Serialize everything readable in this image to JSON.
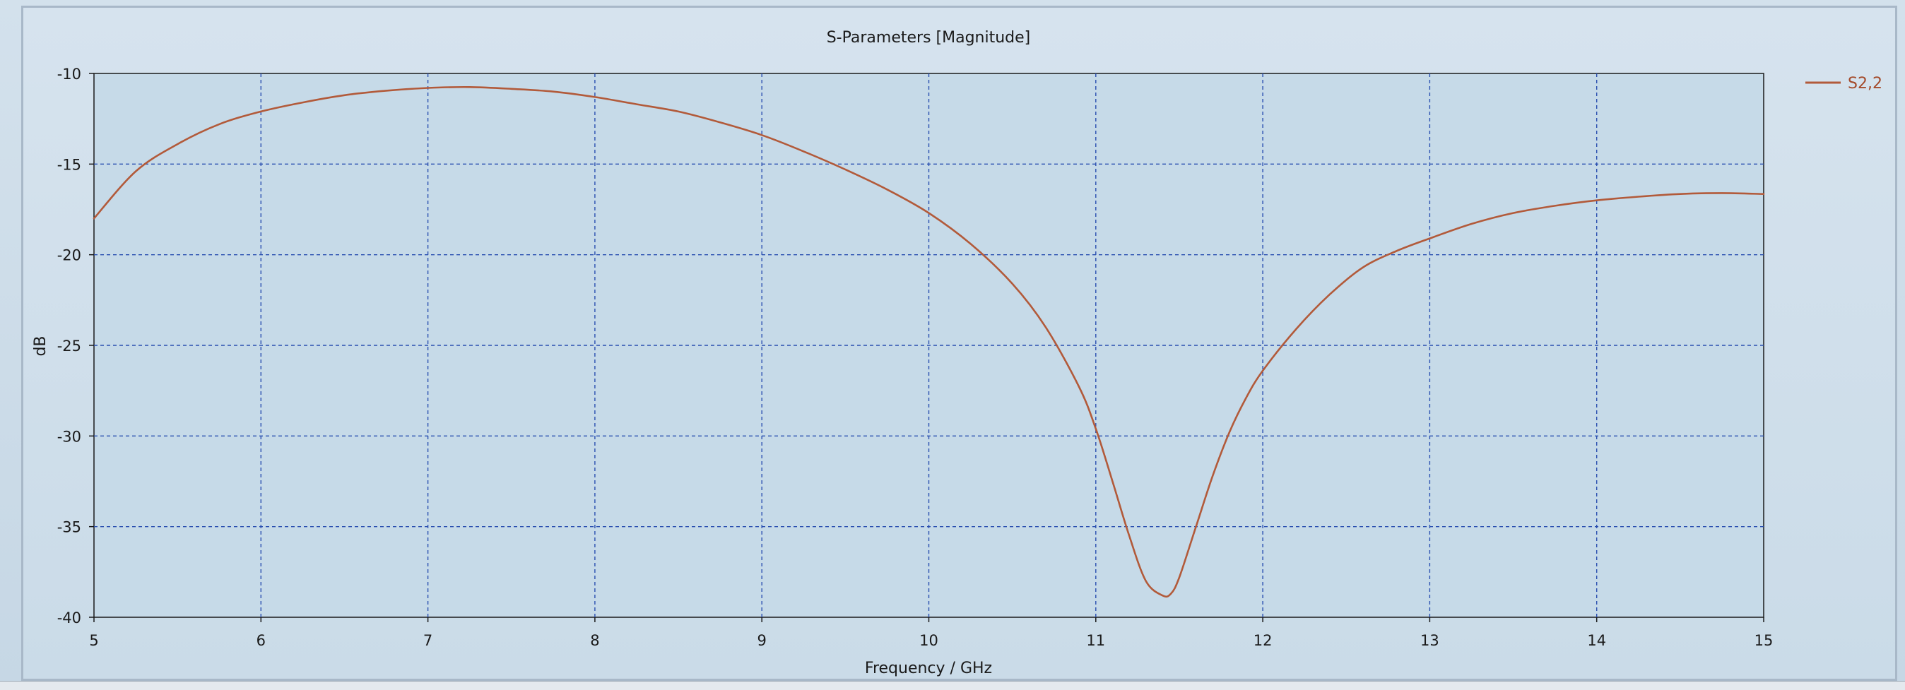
{
  "chart_data": {
    "type": "line",
    "title": "S-Parameters [Magnitude]",
    "xlabel": "Frequency / GHz",
    "ylabel": "dB",
    "xlim": [
      5,
      15
    ],
    "ylim": [
      -40,
      -10
    ],
    "xticks": [
      5,
      6,
      7,
      8,
      9,
      10,
      11,
      12,
      13,
      14,
      15
    ],
    "yticks": [
      -10,
      -15,
      -20,
      -25,
      -30,
      -35,
      -40
    ],
    "grid": true,
    "legend_position": "top-right",
    "series": [
      {
        "name": "S2,2",
        "color": "#b25a3a",
        "x": [
          5.0,
          5.25,
          5.5,
          5.75,
          6.0,
          6.25,
          6.5,
          6.75,
          7.0,
          7.25,
          7.5,
          7.75,
          8.0,
          8.25,
          8.5,
          8.75,
          9.0,
          9.25,
          9.5,
          9.75,
          10.0,
          10.25,
          10.5,
          10.7,
          10.9,
          11.0,
          11.1,
          11.2,
          11.3,
          11.4,
          11.45,
          11.5,
          11.6,
          11.7,
          11.8,
          11.9,
          12.0,
          12.2,
          12.4,
          12.6,
          12.8,
          13.0,
          13.25,
          13.5,
          13.75,
          14.0,
          14.25,
          14.5,
          14.75,
          15.0
        ],
        "y": [
          -18.0,
          -15.4,
          -13.9,
          -12.8,
          -12.1,
          -11.6,
          -11.2,
          -10.95,
          -10.8,
          -10.75,
          -10.85,
          -11.0,
          -11.3,
          -11.7,
          -12.1,
          -12.7,
          -13.4,
          -14.3,
          -15.3,
          -16.4,
          -17.7,
          -19.4,
          -21.6,
          -24.0,
          -27.3,
          -29.6,
          -32.5,
          -35.5,
          -38.0,
          -38.8,
          -38.7,
          -37.8,
          -35.0,
          -32.2,
          -29.8,
          -27.9,
          -26.4,
          -24.1,
          -22.2,
          -20.7,
          -19.8,
          -19.1,
          -18.3,
          -17.7,
          -17.3,
          -17.0,
          -16.8,
          -16.65,
          -16.6,
          -16.65
        ]
      }
    ]
  }
}
